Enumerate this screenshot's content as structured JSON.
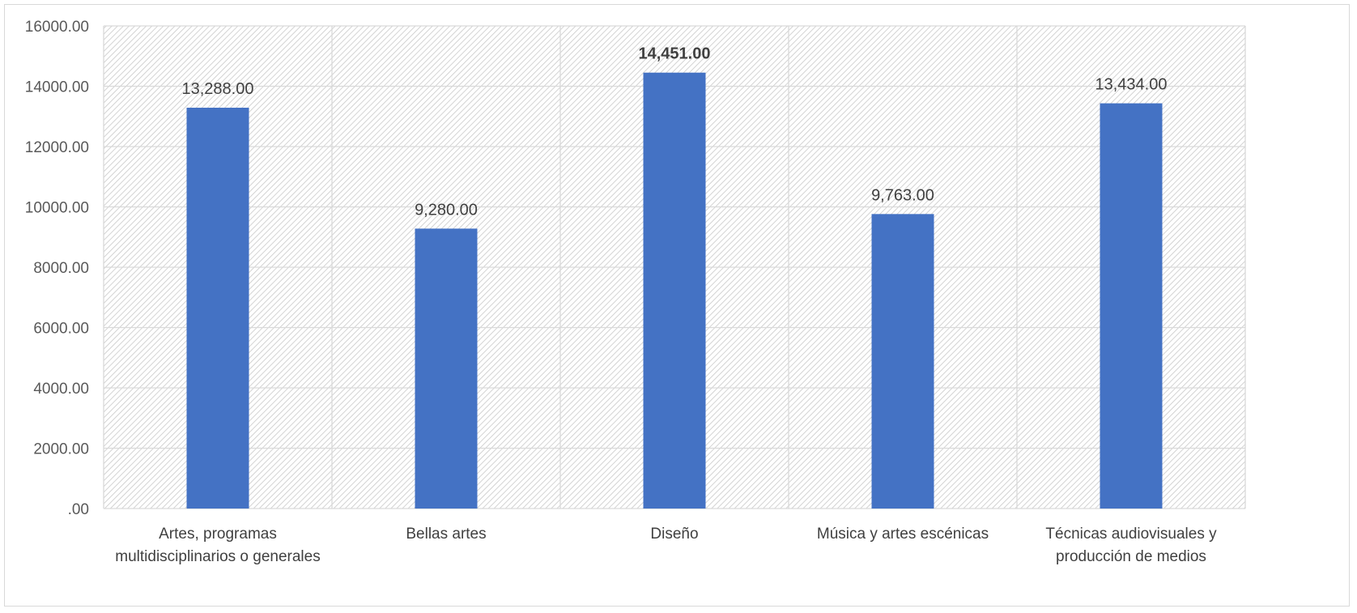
{
  "chart_data": {
    "type": "bar",
    "categories": [
      [
        "Artes, programas",
        "multidisciplinarios o generales"
      ],
      [
        "Bellas artes"
      ],
      [
        "Diseño"
      ],
      [
        "Música y artes escénicas"
      ],
      [
        "Técnicas audiovisuales y",
        "producción de medios"
      ]
    ],
    "values": [
      13288,
      9280,
      14451,
      9763,
      13434
    ],
    "value_labels": [
      "13,288.00",
      "9,280.00",
      "14,451.00",
      "9,763.00",
      "13,434.00"
    ],
    "highlighted_index": 2,
    "y_tick_labels": [
      ".00",
      "2000.00",
      "4000.00",
      "6000.00",
      "8000.00",
      "10000.00",
      "12000.00",
      "14000.00",
      "16000.00"
    ],
    "ylim": [
      0,
      16000
    ],
    "title": "",
    "xlabel": "",
    "ylabel": "",
    "grid": true,
    "legend": "none",
    "colors": {
      "bar": "#4472c4",
      "grid": "#d9d9d9",
      "hatch": "#c8c8c8",
      "text": "#404040"
    }
  }
}
